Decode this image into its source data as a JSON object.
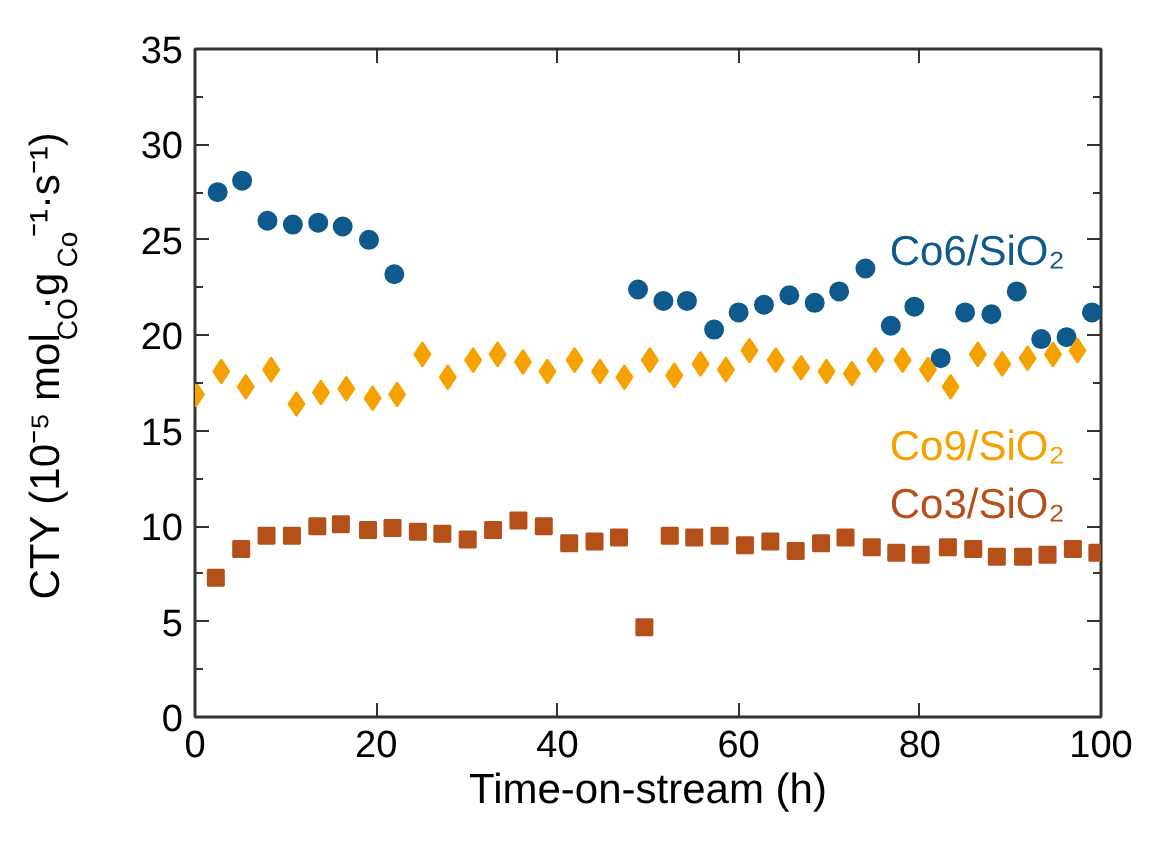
{
  "chart_data": {
    "type": "scatter",
    "xlabel": "Time-on-stream (h)",
    "ylabel": "CTY (10⁻⁵ mol$_{CO}$·g$_{Co}$⁻¹·s⁻¹)",
    "xlim": [
      0,
      100
    ],
    "xticks": [
      0,
      20,
      40,
      60,
      80,
      100
    ],
    "ylim": [
      0,
      35
    ],
    "yticks": [
      0,
      {
        "value": 2.5,
        "label": null
      },
      5,
      {
        "value": 7.5,
        "label": null
      },
      10,
      {
        "value": 12.5,
        "label": null
      },
      15,
      {
        "value": 17.5,
        "label": null
      },
      20,
      {
        "value": 22.5,
        "label": null
      },
      25,
      {
        "value": 27.5,
        "label": null
      },
      30,
      {
        "value": 32.5,
        "label": null
      },
      35
    ],
    "grid": false,
    "series": [
      {
        "name": "Co6/SiO₂",
        "color": "#0e5a8c",
        "marker": "circle",
        "x": [
          2.5,
          5.2,
          8.0,
          10.8,
          13.6,
          16.3,
          19.2,
          22.0,
          48.9,
          51.7,
          54.3,
          57.3,
          60.0,
          62.8,
          65.6,
          68.4,
          71.1,
          74.0,
          76.8,
          79.4,
          82.3,
          85.0,
          87.9,
          90.7,
          93.4,
          96.2,
          99.0
        ],
        "values": [
          27.5,
          28.1,
          26.0,
          25.8,
          25.9,
          25.7,
          25.0,
          23.2,
          22.4,
          21.8,
          21.8,
          20.3,
          21.2,
          21.6,
          22.1,
          21.7,
          22.3,
          23.5,
          20.5,
          21.5,
          18.8,
          21.2,
          21.1,
          22.3,
          19.8,
          19.9,
          21.2
        ]
      },
      {
        "name": "Co9/SiO₂",
        "color": "#f5a100",
        "marker": "diamond",
        "x": [
          0.1,
          2.9,
          5.6,
          8.4,
          11.2,
          13.9,
          16.7,
          19.6,
          22.3,
          25.1,
          27.9,
          30.7,
          33.4,
          36.2,
          38.9,
          41.9,
          44.7,
          47.4,
          50.2,
          52.9,
          55.8,
          58.6,
          61.2,
          64.1,
          66.9,
          69.7,
          72.5,
          75.1,
          78.1,
          80.9,
          83.4,
          86.4,
          89.1,
          91.9,
          94.7,
          97.4
        ],
        "values": [
          16.9,
          18.1,
          17.3,
          18.2,
          16.4,
          17.0,
          17.2,
          16.7,
          16.9,
          19.0,
          17.8,
          18.7,
          19.0,
          18.6,
          18.1,
          18.7,
          18.1,
          17.8,
          18.7,
          17.9,
          18.5,
          18.2,
          19.2,
          18.7,
          18.3,
          18.1,
          18.0,
          18.7,
          18.7,
          18.2,
          17.3,
          19.0,
          18.5,
          18.8,
          19.0,
          19.2
        ]
      },
      {
        "name": "Co3/SiO₂",
        "color": "#b5501a",
        "marker": "square",
        "x": [
          2.3,
          5.1,
          7.9,
          10.7,
          13.5,
          16.1,
          19.1,
          21.8,
          24.6,
          27.3,
          30.1,
          32.9,
          35.7,
          38.5,
          41.3,
          44.1,
          46.8,
          49.6,
          52.4,
          55.1,
          57.9,
          60.7,
          63.5,
          66.3,
          69.1,
          71.8,
          74.7,
          77.4,
          80.1,
          83.1,
          85.9,
          88.5,
          91.4,
          94.1,
          96.9,
          99.6
        ],
        "values": [
          7.3,
          8.8,
          9.5,
          9.5,
          10.0,
          10.1,
          9.8,
          9.9,
          9.7,
          9.6,
          9.3,
          9.8,
          10.3,
          10.0,
          9.1,
          9.2,
          9.4,
          4.7,
          9.5,
          9.4,
          9.5,
          9.0,
          9.2,
          8.7,
          9.1,
          9.4,
          8.9,
          8.6,
          8.5,
          8.9,
          8.8,
          8.4,
          8.4,
          8.5,
          8.8,
          8.6
        ]
      }
    ]
  }
}
